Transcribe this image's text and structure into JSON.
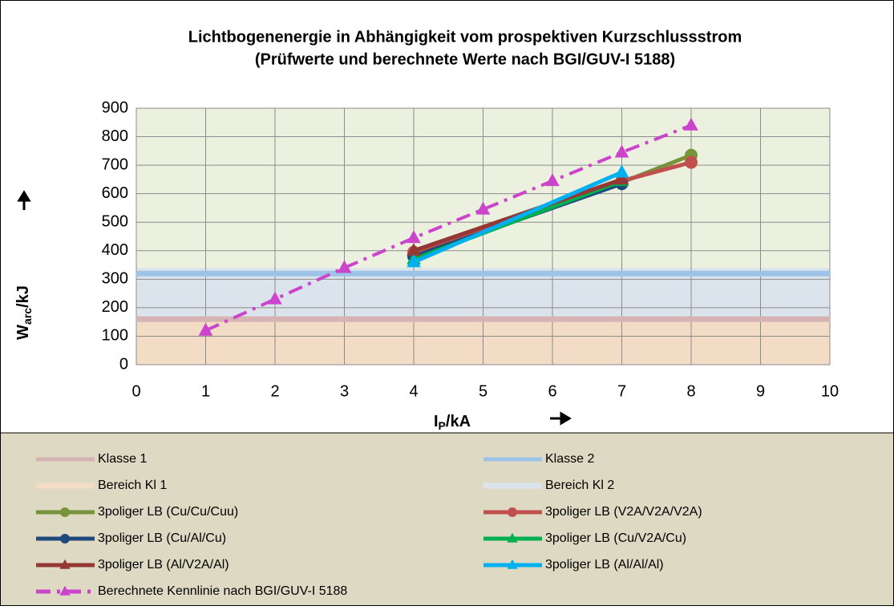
{
  "chart_data": {
    "type": "line",
    "title": [
      "Lichtbogenenergie in Abhängigkeit vom prospektiven Kurzschlussstrom",
      "(Prüfwerte und berechnete Werte nach BGI/GUV-I 5188)"
    ],
    "xlabel": {
      "main": "I",
      "sub": "P",
      "unit": "/kA"
    },
    "ylabel": {
      "main": "W",
      "sub": "arc",
      "unit": "/kJ"
    },
    "xlim": [
      0,
      10
    ],
    "xticks": [
      0,
      1,
      2,
      3,
      4,
      5,
      6,
      7,
      8,
      9,
      10
    ],
    "ylim": [
      0,
      900
    ],
    "yticks": [
      0,
      100,
      200,
      300,
      400,
      500,
      600,
      700,
      800,
      900
    ],
    "grid": true,
    "series": [
      {
        "name": "Klasse 1",
        "kind": "line",
        "color": "#d6b4b4",
        "width": 7,
        "x": [
          0,
          10
        ],
        "values": [
          160,
          160
        ]
      },
      {
        "name": "Klasse 2",
        "kind": "line",
        "color": "#9dc3e6",
        "width": 7,
        "x": [
          0,
          10
        ],
        "values": [
          320,
          320
        ]
      },
      {
        "name": "Bereich Kl 1",
        "kind": "area",
        "color": "#f2dcc6",
        "x": [
          0,
          10
        ],
        "values": [
          160,
          160
        ]
      },
      {
        "name": "Bereich Kl 2",
        "kind": "area",
        "color": "#dbe4ec",
        "x": [
          0,
          10
        ],
        "values": [
          180,
          180
        ]
      },
      {
        "name": "3poliger LB (Cu/Cu/Cuu)",
        "kind": "line",
        "color": "#77933c",
        "width": 5,
        "marker": "circle",
        "x": [
          4,
          7,
          8
        ],
        "values": [
          390,
          640,
          735
        ]
      },
      {
        "name": "3poliger LB (V2A/V2A/V2A)",
        "kind": "line",
        "color": "#c0504d",
        "width": 5,
        "marker": "circle",
        "x": [
          4,
          7,
          8
        ],
        "values": [
          395,
          645,
          710
        ]
      },
      {
        "name": "3poliger LB (Cu/Al/Cu)",
        "kind": "line",
        "color": "#1f497d",
        "width": 5,
        "marker": "circle",
        "x": [
          4,
          7
        ],
        "values": [
          380,
          635
        ]
      },
      {
        "name": "3poliger LB (Cu/V2A/Cu)",
        "kind": "line",
        "color": "#00b050",
        "width": 5,
        "marker": "triangle",
        "x": [
          4,
          7
        ],
        "values": [
          370,
          645
        ]
      },
      {
        "name": "3poliger LB (Al/V2A/Al)",
        "kind": "line",
        "color": "#953735",
        "width": 5,
        "marker": "triangle",
        "x": [
          4,
          7
        ],
        "values": [
          400,
          650
        ]
      },
      {
        "name": "3poliger LB (Al/Al/Al)",
        "kind": "line",
        "color": "#00b0f0",
        "width": 5,
        "marker": "triangle",
        "x": [
          4,
          7
        ],
        "values": [
          360,
          675
        ]
      },
      {
        "name": "Berechnete Kennlinie nach BGI/GUV-I 5188",
        "kind": "line",
        "color": "#cc44cc",
        "width": 4,
        "dash": "18 8 4 8",
        "marker": "triangle",
        "x": [
          1,
          2,
          3,
          4,
          5,
          6,
          7,
          8
        ],
        "values": [
          120,
          230,
          340,
          445,
          545,
          645,
          745,
          840
        ]
      }
    ]
  }
}
